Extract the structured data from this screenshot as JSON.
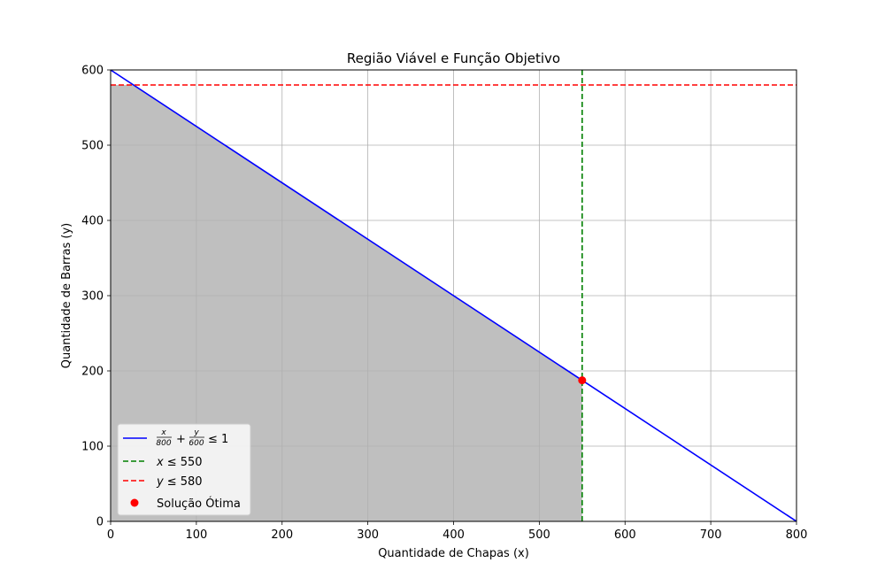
{
  "chart_data": {
    "type": "line",
    "title": "Região Viável e Função Objetivo",
    "xlabel": "Quantidade de Chapas (x)",
    "ylabel": "Quantidade de Barras (y)",
    "xlim": [
      0,
      800
    ],
    "ylim": [
      0,
      600
    ],
    "xticks": [
      0,
      100,
      200,
      300,
      400,
      500,
      600,
      700,
      800
    ],
    "yticks": [
      0,
      100,
      200,
      300,
      400,
      500,
      600
    ],
    "grid": true,
    "legend_position": "lower-left",
    "feasible_region": {
      "color": "#bfbfbf",
      "points": [
        [
          0,
          0
        ],
        [
          0,
          580
        ],
        [
          26.67,
          580
        ],
        [
          550,
          187.5
        ],
        [
          550,
          0
        ]
      ]
    },
    "series": [
      {
        "name": "x/800 + y/600 ≤ 1",
        "legend": {
          "x_num": "x",
          "x_den": "800",
          "plus": "+",
          "y_num": "y",
          "y_den": "600",
          "rel": "≤ 1"
        },
        "style": "solid",
        "color": "#0000ff",
        "points": [
          [
            0,
            600
          ],
          [
            800,
            0
          ]
        ]
      },
      {
        "name": "x ≤ 550",
        "legend": {
          "var": "x",
          "rel": "≤ 550"
        },
        "style": "dashed",
        "color": "#008000",
        "points": [
          [
            550,
            0
          ],
          [
            550,
            600
          ]
        ]
      },
      {
        "name": "y ≤ 580",
        "legend": {
          "var": "y",
          "rel": "≤ 580"
        },
        "style": "dashed",
        "color": "#ff0000",
        "points": [
          [
            0,
            580
          ],
          [
            800,
            580
          ]
        ]
      }
    ],
    "optimal_point": {
      "name": "Solução Ótima",
      "x": 550,
      "y": 187.5,
      "color": "#ff0000"
    }
  }
}
